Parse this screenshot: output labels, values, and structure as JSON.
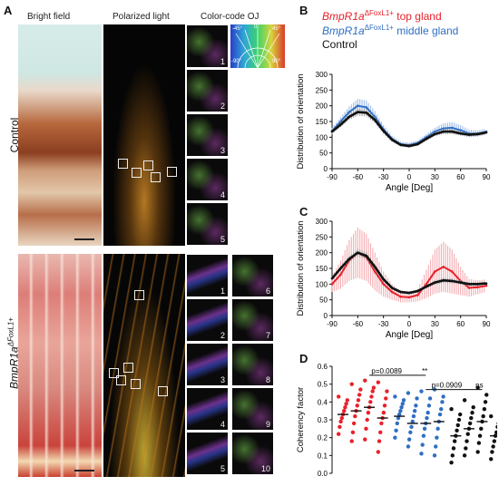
{
  "panels": {
    "A": {
      "letter": "A",
      "col_bright": "Bright field",
      "col_pol": "Polarized light",
      "col_oj": "Color-code OJ",
      "row_control": "Control",
      "row_mut_gene": "BmpR1a",
      "row_mut_sup": "ΔFoxL1+",
      "wheel_labels": {
        "m45": "-45°",
        "z": "0°",
        "p45": "45°",
        "m90": "-90°",
        "p90": "90°"
      },
      "control_tiles": [
        "1",
        "2",
        "3",
        "4",
        "5"
      ],
      "mut_tiles_left": [
        "1",
        "2",
        "3",
        "4",
        "5"
      ],
      "mut_tiles_right": [
        "6",
        "7",
        "8",
        "9",
        "10"
      ]
    },
    "B": {
      "letter": "B"
    },
    "C": {
      "letter": "C"
    },
    "D": {
      "letter": "D"
    }
  },
  "legend": {
    "top_gene": "BmpR1a",
    "top_sup": "ΔFoxL1+",
    "top_suffix": " top gland",
    "mid_gene": "BmpR1a",
    "mid_sup": "ΔFoxL1+",
    "mid_suffix": " middle gland",
    "control": "Control"
  },
  "colors": {
    "red": "#e8212b",
    "blue": "#2f6fc4",
    "black": "#111111",
    "pink_band": "#f2a0a6",
    "blue_band": "#8fb2e6",
    "grey_band": "#9a9a9a"
  },
  "chart_data": [
    {
      "panel": "B",
      "type": "line",
      "xlabel": "Angle [Deg]",
      "ylabel": "Distribution of orientation",
      "xlim": [
        -90,
        90
      ],
      "ylim": [
        0,
        300
      ],
      "xticks": [
        -90,
        -60,
        -30,
        0,
        30,
        60,
        90
      ],
      "yticks": [
        0,
        50,
        100,
        150,
        200,
        250,
        300
      ],
      "x": [
        -90,
        -80,
        -70,
        -60,
        -50,
        -40,
        -30,
        -20,
        -10,
        0,
        10,
        20,
        30,
        40,
        50,
        60,
        70,
        80,
        90
      ],
      "series": [
        {
          "name": "BmpR1a ΔFoxL1+ middle gland",
          "color": "blue",
          "values": [
            120,
            150,
            180,
            200,
            195,
            165,
            125,
            95,
            78,
            75,
            82,
            100,
            118,
            128,
            130,
            122,
            112,
            112,
            118
          ],
          "error": [
            10,
            14,
            18,
            22,
            22,
            18,
            14,
            10,
            8,
            8,
            8,
            10,
            12,
            16,
            18,
            16,
            12,
            10,
            10
          ]
        },
        {
          "name": "Control",
          "color": "black",
          "values": [
            118,
            140,
            165,
            180,
            178,
            155,
            120,
            92,
            76,
            72,
            78,
            95,
            110,
            118,
            118,
            112,
            108,
            110,
            115
          ],
          "error": [
            6,
            8,
            10,
            12,
            12,
            10,
            8,
            6,
            5,
            5,
            5,
            6,
            7,
            8,
            8,
            7,
            6,
            6,
            6
          ]
        }
      ]
    },
    {
      "panel": "C",
      "type": "line",
      "xlabel": "Angle [Deg]",
      "ylabel": "Distribution of orientation",
      "xlim": [
        -90,
        90
      ],
      "ylim": [
        0,
        300
      ],
      "xticks": [
        -90,
        -60,
        -30,
        0,
        30,
        60,
        90
      ],
      "yticks": [
        0,
        50,
        100,
        150,
        200,
        250,
        300
      ],
      "x": [
        -90,
        -80,
        -70,
        -60,
        -50,
        -40,
        -30,
        -20,
        -10,
        0,
        10,
        20,
        30,
        40,
        50,
        60,
        70,
        80,
        90
      ],
      "series": [
        {
          "name": "BmpR1a ΔFoxL1+ top gland",
          "color": "red",
          "values": [
            100,
            130,
            175,
            200,
            185,
            140,
            100,
            75,
            60,
            58,
            65,
            100,
            140,
            155,
            140,
            110,
            88,
            90,
            95
          ],
          "error": [
            25,
            45,
            65,
            80,
            75,
            60,
            40,
            25,
            18,
            16,
            20,
            45,
            70,
            80,
            70,
            45,
            28,
            22,
            20
          ]
        },
        {
          "name": "Control",
          "color": "black",
          "values": [
            118,
            150,
            180,
            200,
            190,
            155,
            115,
            88,
            75,
            72,
            78,
            92,
            105,
            112,
            110,
            105,
            100,
            100,
            102
          ],
          "error": [
            6,
            8,
            10,
            12,
            12,
            10,
            8,
            6,
            5,
            5,
            5,
            6,
            7,
            8,
            8,
            7,
            6,
            6,
            6
          ]
        }
      ]
    },
    {
      "panel": "D",
      "type": "scatter",
      "ylabel": "Coherency factor",
      "ylim": [
        0.0,
        0.6
      ],
      "yticks": [
        "0.0",
        "0.1",
        "0.2",
        "0.3",
        "0.4",
        "0.5",
        "0.6"
      ],
      "annotations": [
        {
          "text": "p=0.0089",
          "stars": "**"
        },
        {
          "text": "p=0.0909",
          "stars": "ns"
        }
      ],
      "groups": [
        {
          "color": "red",
          "mean": 0.33,
          "values": [
            0.22,
            0.26,
            0.29,
            0.31,
            0.33,
            0.35,
            0.37,
            0.39,
            0.41,
            0.43
          ]
        },
        {
          "color": "red",
          "mean": 0.35,
          "values": [
            0.18,
            0.23,
            0.28,
            0.32,
            0.35,
            0.38,
            0.41,
            0.44,
            0.47,
            0.5
          ]
        },
        {
          "color": "red",
          "mean": 0.37,
          "values": [
            0.19,
            0.25,
            0.3,
            0.34,
            0.37,
            0.4,
            0.43,
            0.46,
            0.48,
            0.52
          ]
        },
        {
          "color": "red",
          "mean": 0.31,
          "values": [
            0.12,
            0.18,
            0.23,
            0.28,
            0.31,
            0.34,
            0.38,
            0.42,
            0.46,
            0.51
          ]
        },
        {
          "color": "blue",
          "mean": 0.32,
          "values": [
            0.2,
            0.24,
            0.28,
            0.31,
            0.33,
            0.35,
            0.37,
            0.39,
            0.41,
            0.43
          ]
        },
        {
          "color": "blue",
          "mean": 0.28,
          "values": [
            0.15,
            0.19,
            0.23,
            0.26,
            0.29,
            0.32,
            0.35,
            0.38,
            0.42,
            0.45
          ]
        },
        {
          "color": "blue",
          "mean": 0.28,
          "values": [
            0.11,
            0.16,
            0.21,
            0.25,
            0.28,
            0.31,
            0.34,
            0.38,
            0.42,
            0.46
          ]
        },
        {
          "color": "blue",
          "mean": 0.29,
          "values": [
            0.1,
            0.15,
            0.2,
            0.25,
            0.29,
            0.33,
            0.36,
            0.4,
            0.43,
            0.47
          ]
        },
        {
          "color": "black",
          "mean": 0.21,
          "values": [
            0.06,
            0.1,
            0.14,
            0.18,
            0.21,
            0.24,
            0.27,
            0.3,
            0.33,
            0.36
          ]
        },
        {
          "color": "black",
          "mean": 0.25,
          "values": [
            0.1,
            0.14,
            0.18,
            0.22,
            0.25,
            0.28,
            0.31,
            0.34,
            0.37,
            0.41
          ]
        },
        {
          "color": "black",
          "mean": 0.29,
          "values": [
            0.12,
            0.17,
            0.21,
            0.25,
            0.29,
            0.32,
            0.36,
            0.4,
            0.44,
            0.48
          ]
        },
        {
          "color": "black",
          "mean": 0.21,
          "values": [
            0.08,
            0.12,
            0.15,
            0.18,
            0.21,
            0.23,
            0.26,
            0.28,
            0.3,
            0.32
          ]
        }
      ]
    }
  ]
}
